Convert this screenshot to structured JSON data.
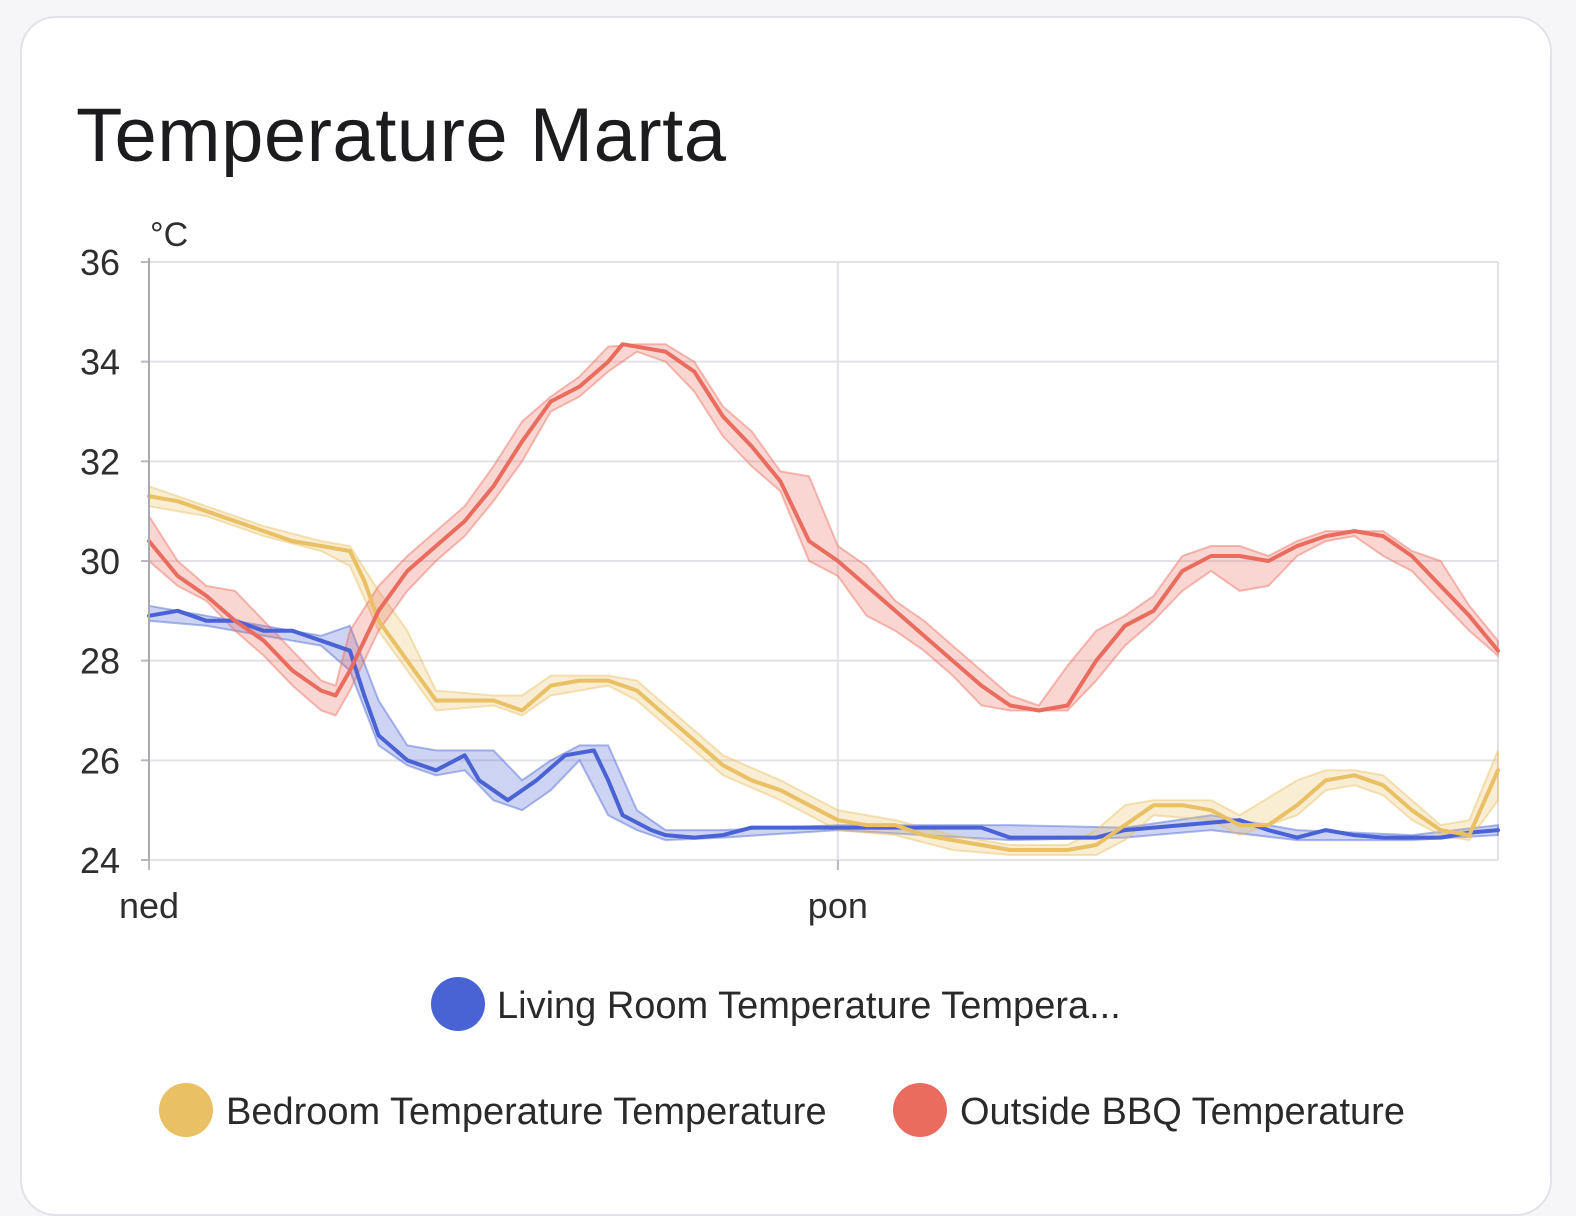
{
  "card": {
    "title": "Temperature Marta"
  },
  "chart_data": {
    "type": "line",
    "title": "Temperature Marta",
    "ylabel": "°C",
    "xlabel": "",
    "ylim": [
      24,
      36
    ],
    "yticks": [
      24,
      26,
      28,
      30,
      32,
      34,
      36
    ],
    "xlim": [
      0,
      47
    ],
    "x_ticks": [
      {
        "x": 0,
        "label": "ned"
      },
      {
        "x": 24,
        "label": "pon"
      }
    ],
    "grid": true,
    "legend_position": "bottom",
    "series": [
      {
        "name": "Living Room Temperature Tempera...",
        "color": "#4a63d4",
        "points": [
          [
            0,
            28.9
          ],
          [
            1,
            29.0
          ],
          [
            2,
            28.8
          ],
          [
            3,
            28.8
          ],
          [
            4,
            28.6
          ],
          [
            5,
            28.6
          ],
          [
            6,
            28.4
          ],
          [
            7,
            28.2
          ],
          [
            7.5,
            27.3
          ],
          [
            8,
            26.5
          ],
          [
            9,
            26.0
          ],
          [
            10,
            25.8
          ],
          [
            11,
            26.1
          ],
          [
            11.5,
            25.6
          ],
          [
            12.5,
            25.2
          ],
          [
            13.5,
            25.6
          ],
          [
            14.5,
            26.1
          ],
          [
            15.5,
            26.2
          ],
          [
            16,
            25.6
          ],
          [
            16.5,
            24.9
          ],
          [
            17.5,
            24.6
          ],
          [
            18,
            24.5
          ],
          [
            19,
            24.45
          ],
          [
            20,
            24.5
          ],
          [
            21,
            24.65
          ],
          [
            22,
            24.65
          ],
          [
            23,
            24.65
          ],
          [
            24,
            24.65
          ],
          [
            25,
            24.65
          ],
          [
            26,
            24.65
          ],
          [
            27,
            24.65
          ],
          [
            28,
            24.65
          ],
          [
            29,
            24.65
          ],
          [
            30,
            24.45
          ],
          [
            31,
            24.45
          ],
          [
            32,
            24.45
          ],
          [
            33,
            24.45
          ],
          [
            34,
            24.6
          ],
          [
            35,
            24.65
          ],
          [
            36,
            24.7
          ],
          [
            37,
            24.75
          ],
          [
            38,
            24.8
          ],
          [
            39,
            24.6
          ],
          [
            40,
            24.45
          ],
          [
            41,
            24.6
          ],
          [
            42,
            24.5
          ],
          [
            43,
            24.45
          ],
          [
            44,
            24.45
          ],
          [
            45,
            24.45
          ],
          [
            46,
            24.55
          ],
          [
            47,
            24.6
          ]
        ],
        "band": [
          [
            0,
            29.1,
            28.8
          ],
          [
            2,
            28.9,
            28.7
          ],
          [
            4,
            28.7,
            28.5
          ],
          [
            6,
            28.5,
            28.3
          ],
          [
            7,
            28.7,
            27.8
          ],
          [
            8,
            27.2,
            26.3
          ],
          [
            9,
            26.3,
            25.9
          ],
          [
            10,
            26.2,
            25.7
          ],
          [
            11,
            26.2,
            25.8
          ],
          [
            12,
            26.2,
            25.2
          ],
          [
            13,
            25.6,
            25.0
          ],
          [
            14,
            26.0,
            25.4
          ],
          [
            15,
            26.3,
            26.0
          ],
          [
            16,
            26.3,
            24.9
          ],
          [
            17,
            25.0,
            24.6
          ],
          [
            18,
            24.6,
            24.4
          ],
          [
            20,
            24.6,
            24.45
          ],
          [
            24,
            24.7,
            24.6
          ],
          [
            30,
            24.7,
            24.4
          ],
          [
            34,
            24.65,
            24.45
          ],
          [
            37,
            24.9,
            24.6
          ],
          [
            40,
            24.6,
            24.4
          ],
          [
            44,
            24.5,
            24.4
          ],
          [
            47,
            24.7,
            24.5
          ]
        ]
      },
      {
        "name": "Bedroom Temperature Temperature",
        "color": "#e9c063",
        "points": [
          [
            0,
            31.3
          ],
          [
            1,
            31.2
          ],
          [
            2,
            31.0
          ],
          [
            3,
            30.8
          ],
          [
            4,
            30.6
          ],
          [
            5,
            30.4
          ],
          [
            6,
            30.3
          ],
          [
            7,
            30.2
          ],
          [
            7.5,
            29.6
          ],
          [
            8,
            28.8
          ],
          [
            9,
            28.0
          ],
          [
            10,
            27.2
          ],
          [
            11,
            27.2
          ],
          [
            12,
            27.2
          ],
          [
            13,
            27.0
          ],
          [
            14,
            27.5
          ],
          [
            15,
            27.6
          ],
          [
            16,
            27.6
          ],
          [
            17,
            27.4
          ],
          [
            18,
            26.9
          ],
          [
            19,
            26.4
          ],
          [
            20,
            25.9
          ],
          [
            21,
            25.6
          ],
          [
            22,
            25.4
          ],
          [
            23,
            25.1
          ],
          [
            24,
            24.8
          ],
          [
            25,
            24.7
          ],
          [
            26,
            24.7
          ],
          [
            27,
            24.5
          ],
          [
            28,
            24.4
          ],
          [
            29,
            24.3
          ],
          [
            30,
            24.2
          ],
          [
            31,
            24.2
          ],
          [
            32,
            24.2
          ],
          [
            33,
            24.3
          ],
          [
            34,
            24.7
          ],
          [
            35,
            25.1
          ],
          [
            36,
            25.1
          ],
          [
            37,
            25.0
          ],
          [
            38,
            24.7
          ],
          [
            39,
            24.7
          ],
          [
            40,
            25.1
          ],
          [
            41,
            25.6
          ],
          [
            42,
            25.7
          ],
          [
            43,
            25.5
          ],
          [
            44,
            25.0
          ],
          [
            45,
            24.6
          ],
          [
            46,
            24.5
          ],
          [
            47,
            25.8
          ]
        ],
        "band": [
          [
            0,
            31.5,
            31.1
          ],
          [
            2,
            31.1,
            30.9
          ],
          [
            4,
            30.7,
            30.5
          ],
          [
            6,
            30.4,
            30.2
          ],
          [
            7,
            30.3,
            29.9
          ],
          [
            8,
            29.4,
            28.6
          ],
          [
            9,
            28.6,
            27.8
          ],
          [
            10,
            27.4,
            27.0
          ],
          [
            12,
            27.3,
            27.1
          ],
          [
            13,
            27.3,
            26.9
          ],
          [
            14,
            27.7,
            27.3
          ],
          [
            16,
            27.7,
            27.5
          ],
          [
            17,
            27.6,
            27.2
          ],
          [
            18,
            27.1,
            26.7
          ],
          [
            19,
            26.6,
            26.2
          ],
          [
            20,
            26.1,
            25.7
          ],
          [
            22,
            25.6,
            25.2
          ],
          [
            24,
            25.0,
            24.6
          ],
          [
            26,
            24.8,
            24.5
          ],
          [
            28,
            24.5,
            24.2
          ],
          [
            30,
            24.3,
            24.1
          ],
          [
            32,
            24.3,
            24.1
          ],
          [
            33,
            24.6,
            24.1
          ],
          [
            34,
            25.1,
            24.4
          ],
          [
            35,
            25.2,
            24.9
          ],
          [
            37,
            25.2,
            24.8
          ],
          [
            38,
            24.9,
            24.5
          ],
          [
            40,
            25.6,
            24.9
          ],
          [
            41,
            25.8,
            25.4
          ],
          [
            42,
            25.8,
            25.5
          ],
          [
            43,
            25.7,
            25.3
          ],
          [
            44,
            25.2,
            24.8
          ],
          [
            45,
            24.7,
            24.5
          ],
          [
            46,
            24.8,
            24.4
          ],
          [
            47,
            26.2,
            25.2
          ]
        ]
      },
      {
        "name": "Outside BBQ Temperature",
        "color": "#ea6c5f",
        "points": [
          [
            0,
            30.4
          ],
          [
            1,
            29.7
          ],
          [
            2,
            29.3
          ],
          [
            3,
            28.8
          ],
          [
            4,
            28.4
          ],
          [
            5,
            27.8
          ],
          [
            6,
            27.4
          ],
          [
            6.5,
            27.3
          ],
          [
            7,
            27.8
          ],
          [
            8,
            29.0
          ],
          [
            9,
            29.8
          ],
          [
            10,
            30.3
          ],
          [
            11,
            30.8
          ],
          [
            12,
            31.5
          ],
          [
            13,
            32.4
          ],
          [
            14,
            33.2
          ],
          [
            15,
            33.5
          ],
          [
            16,
            34.0
          ],
          [
            16.5,
            34.35
          ],
          [
            17,
            34.3
          ],
          [
            18,
            34.2
          ],
          [
            19,
            33.8
          ],
          [
            20,
            32.9
          ],
          [
            21,
            32.3
          ],
          [
            22,
            31.6
          ],
          [
            23,
            30.4
          ],
          [
            24,
            30.0
          ],
          [
            25,
            29.5
          ],
          [
            26,
            29.0
          ],
          [
            27,
            28.5
          ],
          [
            28,
            28.0
          ],
          [
            29,
            27.5
          ],
          [
            30,
            27.1
          ],
          [
            31,
            27.0
          ],
          [
            32,
            27.1
          ],
          [
            33,
            28.0
          ],
          [
            34,
            28.7
          ],
          [
            35,
            29.0
          ],
          [
            36,
            29.8
          ],
          [
            37,
            30.1
          ],
          [
            38,
            30.1
          ],
          [
            39,
            30.0
          ],
          [
            40,
            30.3
          ],
          [
            41,
            30.5
          ],
          [
            42,
            30.6
          ],
          [
            43,
            30.5
          ],
          [
            44,
            30.1
          ],
          [
            45,
            29.5
          ],
          [
            46,
            28.9
          ],
          [
            47,
            28.2
          ]
        ],
        "band": [
          [
            0,
            30.9,
            30.0
          ],
          [
            1,
            30.0,
            29.5
          ],
          [
            2,
            29.5,
            29.2
          ],
          [
            3,
            29.4,
            28.6
          ],
          [
            4,
            28.8,
            28.1
          ],
          [
            5,
            28.2,
            27.5
          ],
          [
            6,
            27.6,
            27.0
          ],
          [
            6.5,
            27.5,
            26.9
          ],
          [
            7,
            28.6,
            27.4
          ],
          [
            8,
            29.5,
            28.6
          ],
          [
            9,
            30.1,
            29.4
          ],
          [
            10,
            30.6,
            30.0
          ],
          [
            11,
            31.1,
            30.5
          ],
          [
            12,
            31.9,
            31.2
          ],
          [
            13,
            32.8,
            32.0
          ],
          [
            14,
            33.3,
            33.0
          ],
          [
            15,
            33.7,
            33.3
          ],
          [
            16,
            34.3,
            33.8
          ],
          [
            17,
            34.35,
            34.2
          ],
          [
            18,
            34.35,
            34.0
          ],
          [
            19,
            34.0,
            33.4
          ],
          [
            20,
            33.1,
            32.5
          ],
          [
            21,
            32.6,
            31.9
          ],
          [
            22,
            31.8,
            31.4
          ],
          [
            23,
            31.7,
            30.0
          ],
          [
            24,
            30.3,
            29.7
          ],
          [
            25,
            29.9,
            28.9
          ],
          [
            26,
            29.2,
            28.6
          ],
          [
            27,
            28.8,
            28.2
          ],
          [
            28,
            28.3,
            27.7
          ],
          [
            29,
            27.8,
            27.1
          ],
          [
            30,
            27.3,
            27.0
          ],
          [
            31,
            27.1,
            27.0
          ],
          [
            32,
            27.9,
            27.0
          ],
          [
            33,
            28.6,
            27.6
          ],
          [
            34,
            28.9,
            28.3
          ],
          [
            35,
            29.3,
            28.8
          ],
          [
            36,
            30.1,
            29.4
          ],
          [
            37,
            30.3,
            29.8
          ],
          [
            38,
            30.3,
            29.4
          ],
          [
            39,
            30.1,
            29.5
          ],
          [
            40,
            30.4,
            30.1
          ],
          [
            41,
            30.6,
            30.4
          ],
          [
            42,
            30.6,
            30.5
          ],
          [
            43,
            30.6,
            30.1
          ],
          [
            44,
            30.2,
            29.8
          ],
          [
            45,
            30.0,
            29.2
          ],
          [
            46,
            29.1,
            28.6
          ],
          [
            47,
            28.4,
            28.1
          ]
        ]
      }
    ]
  }
}
